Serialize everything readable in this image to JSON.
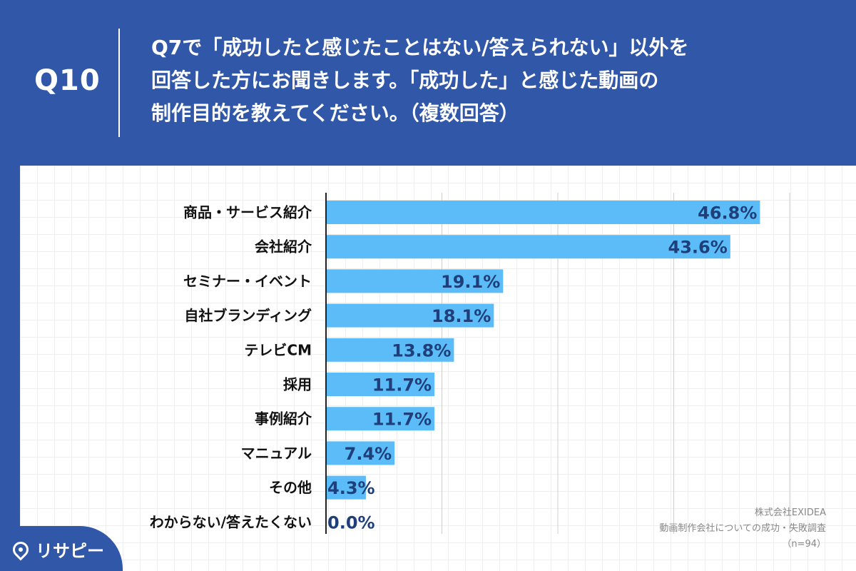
{
  "question_number": "Q10",
  "question_lines": [
    "Q7で「成功したと感じたことはない/答えられない」以外を",
    "回答した方にお聞きします。「成功した」と感じた動画の",
    "制作目的を教えてください。（複数回答）"
  ],
  "source_lines": [
    "株式会社EXIDEA",
    "動画制作会社についての成功・失敗調査",
    "（n=94）"
  ],
  "logo_text": "リサピー",
  "colors": {
    "header_bg": "#3157a8",
    "bar": "#5bbcf7",
    "value_label": "#1f3f7a"
  },
  "chart_data": {
    "type": "bar",
    "orientation": "horizontal",
    "categories": [
      "商品・サービス紹介",
      "会社紹介",
      "セミナー・イベント",
      "自社ブランディング",
      "テレビCM",
      "採用",
      "事例紹介",
      "マニュアル",
      "その他",
      "わからない/答えたくない"
    ],
    "values": [
      46.8,
      43.6,
      19.1,
      18.1,
      13.8,
      11.7,
      11.7,
      7.4,
      4.3,
      0.0
    ],
    "value_labels": [
      "46.8%",
      "43.6%",
      "19.1%",
      "18.1%",
      "13.8%",
      "11.7%",
      "11.7%",
      "7.4%",
      "4.3%",
      "0.0%"
    ],
    "xlim": [
      0,
      50
    ],
    "grid": true,
    "grid_step": 12.5
  }
}
